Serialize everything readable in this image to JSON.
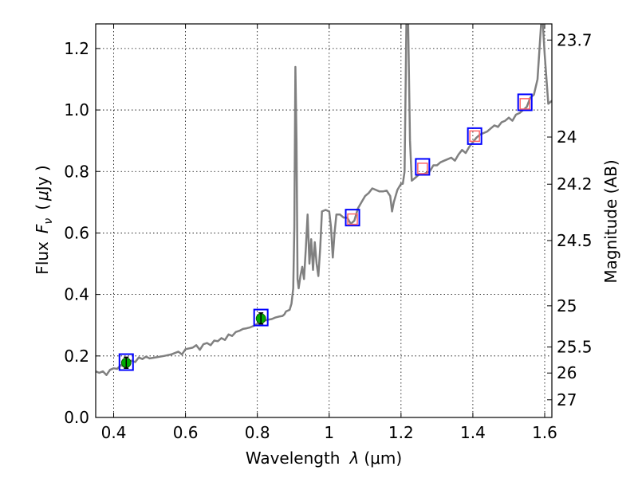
{
  "chart_data": {
    "type": "line",
    "xlabel_text": "Wavelength",
    "xlabel_symbol": "λ",
    "xlabel_unit": "(μm)",
    "ylabel_text": "Flux",
    "ylabel_symbol_F": "F",
    "ylabel_symbol_sub": "ν",
    "ylabel_unit_open": "(",
    "ylabel_unit_mu": "μ",
    "ylabel_unit_rest": "Jy )",
    "y2label": "Magnitude (AB)",
    "xlim": [
      0.35,
      1.62
    ],
    "ylim": [
      0.0,
      1.28
    ],
    "x_ticks": [
      {
        "value": 0.4,
        "label": "0.4"
      },
      {
        "value": 0.6,
        "label": "0.6"
      },
      {
        "value": 0.8,
        "label": "0.8"
      },
      {
        "value": 1.0,
        "label": "1"
      },
      {
        "value": 1.2,
        "label": "1.2"
      },
      {
        "value": 1.4,
        "label": "1.4"
      },
      {
        "value": 1.6,
        "label": "1.6"
      }
    ],
    "y_ticks": [
      {
        "value": 0.0,
        "label": "0.0"
      },
      {
        "value": 0.2,
        "label": "0.2"
      },
      {
        "value": 0.4,
        "label": "0.4"
      },
      {
        "value": 0.6,
        "label": "0.6"
      },
      {
        "value": 0.8,
        "label": "0.8"
      },
      {
        "value": 1.0,
        "label": "1.0"
      },
      {
        "value": 1.2,
        "label": "1.2"
      }
    ],
    "y2_ticks": [
      {
        "flux": 1.2275,
        "label": "23.7"
      },
      {
        "flux": 0.912,
        "label": "24"
      },
      {
        "flux": 0.7586,
        "label": "24.2"
      },
      {
        "flux": 0.5754,
        "label": "24.5"
      },
      {
        "flux": 0.3631,
        "label": "25"
      },
      {
        "flux": 0.2291,
        "label": "25.5"
      },
      {
        "flux": 0.1445,
        "label": "26"
      },
      {
        "flux": 0.0575,
        "label": "27"
      }
    ],
    "grid": true,
    "colors": {
      "spectrum": "#808080",
      "model_box": "#0000ff",
      "observed_marker": "#00aa00",
      "upper_limit_marker": "#ff6666",
      "errorbar": "#000000"
    },
    "series": [
      {
        "type": "line",
        "points": [
          [
            0.35,
            0.15
          ],
          [
            0.36,
            0.145
          ],
          [
            0.37,
            0.15
          ],
          [
            0.38,
            0.138
          ],
          [
            0.39,
            0.155
          ],
          [
            0.4,
            0.16
          ],
          [
            0.41,
            0.158
          ],
          [
            0.42,
            0.17
          ],
          [
            0.43,
            0.165
          ],
          [
            0.44,
            0.178
          ],
          [
            0.45,
            0.185
          ],
          [
            0.46,
            0.18
          ],
          [
            0.47,
            0.195
          ],
          [
            0.48,
            0.19
          ],
          [
            0.49,
            0.198
          ],
          [
            0.5,
            0.192
          ],
          [
            0.52,
            0.196
          ],
          [
            0.54,
            0.2
          ],
          [
            0.56,
            0.205
          ],
          [
            0.58,
            0.214
          ],
          [
            0.59,
            0.205
          ],
          [
            0.6,
            0.222
          ],
          [
            0.62,
            0.227
          ],
          [
            0.63,
            0.235
          ],
          [
            0.64,
            0.22
          ],
          [
            0.65,
            0.238
          ],
          [
            0.66,
            0.242
          ],
          [
            0.67,
            0.235
          ],
          [
            0.68,
            0.25
          ],
          [
            0.69,
            0.248
          ],
          [
            0.7,
            0.258
          ],
          [
            0.71,
            0.252
          ],
          [
            0.72,
            0.27
          ],
          [
            0.73,
            0.265
          ],
          [
            0.74,
            0.278
          ],
          [
            0.75,
            0.282
          ],
          [
            0.76,
            0.288
          ],
          [
            0.77,
            0.29
          ],
          [
            0.78,
            0.293
          ],
          [
            0.79,
            0.298
          ],
          [
            0.8,
            0.305
          ],
          [
            0.81,
            0.312
          ],
          [
            0.82,
            0.315
          ],
          [
            0.83,
            0.318
          ],
          [
            0.84,
            0.32
          ],
          [
            0.85,
            0.325
          ],
          [
            0.86,
            0.328
          ],
          [
            0.87,
            0.33
          ],
          [
            0.875,
            0.335
          ],
          [
            0.88,
            0.345
          ],
          [
            0.89,
            0.35
          ],
          [
            0.895,
            0.37
          ],
          [
            0.9,
            0.42
          ],
          [
            0.903,
            0.62
          ],
          [
            0.906,
            1.14
          ],
          [
            0.909,
            0.9
          ],
          [
            0.912,
            0.45
          ],
          [
            0.915,
            0.42
          ],
          [
            0.92,
            0.46
          ],
          [
            0.925,
            0.49
          ],
          [
            0.93,
            0.45
          ],
          [
            0.935,
            0.55
          ],
          [
            0.94,
            0.66
          ],
          [
            0.945,
            0.5
          ],
          [
            0.95,
            0.58
          ],
          [
            0.955,
            0.48
          ],
          [
            0.96,
            0.57
          ],
          [
            0.965,
            0.5
          ],
          [
            0.97,
            0.46
          ],
          [
            0.975,
            0.55
          ],
          [
            0.98,
            0.67
          ],
          [
            0.99,
            0.675
          ],
          [
            1.0,
            0.67
          ],
          [
            1.005,
            0.62
          ],
          [
            1.01,
            0.52
          ],
          [
            1.015,
            0.6
          ],
          [
            1.02,
            0.66
          ],
          [
            1.03,
            0.66
          ],
          [
            1.04,
            0.65
          ],
          [
            1.05,
            0.65
          ],
          [
            1.06,
            0.63
          ],
          [
            1.07,
            0.64
          ],
          [
            1.08,
            0.68
          ],
          [
            1.09,
            0.7
          ],
          [
            1.1,
            0.72
          ],
          [
            1.11,
            0.73
          ],
          [
            1.12,
            0.745
          ],
          [
            1.13,
            0.74
          ],
          [
            1.14,
            0.735
          ],
          [
            1.15,
            0.735
          ],
          [
            1.16,
            0.738
          ],
          [
            1.17,
            0.72
          ],
          [
            1.175,
            0.67
          ],
          [
            1.18,
            0.7
          ],
          [
            1.19,
            0.74
          ],
          [
            1.2,
            0.76
          ],
          [
            1.205,
            0.76
          ],
          [
            1.21,
            0.8
          ],
          [
            1.215,
            1.28
          ],
          [
            1.22,
            1.28
          ],
          [
            1.225,
            0.9
          ],
          [
            1.23,
            0.77
          ],
          [
            1.24,
            0.78
          ],
          [
            1.25,
            0.79
          ],
          [
            1.26,
            0.79
          ],
          [
            1.27,
            0.795
          ],
          [
            1.28,
            0.8
          ],
          [
            1.29,
            0.82
          ],
          [
            1.3,
            0.82
          ],
          [
            1.31,
            0.83
          ],
          [
            1.32,
            0.835
          ],
          [
            1.33,
            0.84
          ],
          [
            1.34,
            0.845
          ],
          [
            1.35,
            0.835
          ],
          [
            1.36,
            0.855
          ],
          [
            1.37,
            0.87
          ],
          [
            1.38,
            0.86
          ],
          [
            1.39,
            0.88
          ],
          [
            1.4,
            0.895
          ],
          [
            1.41,
            0.91
          ],
          [
            1.42,
            0.92
          ],
          [
            1.43,
            0.925
          ],
          [
            1.44,
            0.93
          ],
          [
            1.45,
            0.94
          ],
          [
            1.46,
            0.95
          ],
          [
            1.47,
            0.945
          ],
          [
            1.48,
            0.96
          ],
          [
            1.49,
            0.965
          ],
          [
            1.5,
            0.975
          ],
          [
            1.51,
            0.965
          ],
          [
            1.52,
            0.985
          ],
          [
            1.53,
            0.99
          ],
          [
            1.54,
            1.0
          ],
          [
            1.55,
            1.01
          ],
          [
            1.56,
            1.04
          ],
          [
            1.57,
            1.05
          ],
          [
            1.58,
            1.1
          ],
          [
            1.59,
            1.28
          ],
          [
            1.595,
            1.28
          ],
          [
            1.6,
            1.18
          ],
          [
            1.61,
            1.02
          ],
          [
            1.62,
            1.03
          ]
        ]
      }
    ],
    "model_points": [
      {
        "x": 0.435,
        "y": 0.18
      },
      {
        "x": 0.81,
        "y": 0.325
      },
      {
        "x": 1.065,
        "y": 0.65
      },
      {
        "x": 1.26,
        "y": 0.815
      },
      {
        "x": 1.405,
        "y": 0.915
      },
      {
        "x": 1.545,
        "y": 1.025
      }
    ],
    "observed_points": [
      {
        "x": 0.435,
        "y": 0.178,
        "yerr": 0.018
      },
      {
        "x": 0.81,
        "y": 0.322,
        "yerr": 0.018
      }
    ],
    "upper_limits": [
      {
        "x": 1.065,
        "y": 0.645
      },
      {
        "x": 1.26,
        "y": 0.81
      },
      {
        "x": 1.405,
        "y": 0.915
      },
      {
        "x": 1.545,
        "y": 1.02
      }
    ]
  }
}
